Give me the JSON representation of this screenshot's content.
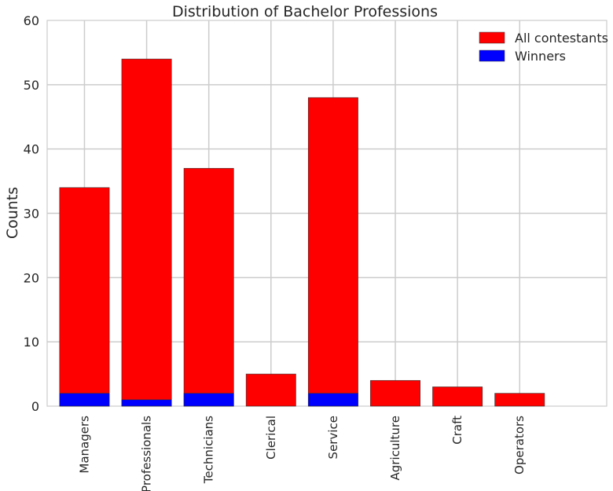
{
  "chart_data": {
    "type": "bar",
    "title": "Distribution of Bachelor Professions",
    "xlabel": "",
    "ylabel": "Counts",
    "ylim": [
      0,
      60
    ],
    "yticks": [
      "0",
      "10",
      "20",
      "30",
      "40",
      "50",
      "60"
    ],
    "grid": true,
    "legend_position": "top-right",
    "categories": [
      "Managers",
      "Professionals",
      "Technicians",
      "Clerical",
      "Service",
      "Agriculture",
      "Craft",
      "Operators"
    ],
    "series": [
      {
        "name": "All contestants",
        "color": "#ff0000",
        "values": [
          34,
          54,
          37,
          5,
          48,
          4,
          3,
          2
        ]
      },
      {
        "name": "Winners",
        "color": "#0000ff",
        "values": [
          2,
          1,
          2,
          0,
          2,
          0,
          0,
          0
        ]
      }
    ]
  }
}
